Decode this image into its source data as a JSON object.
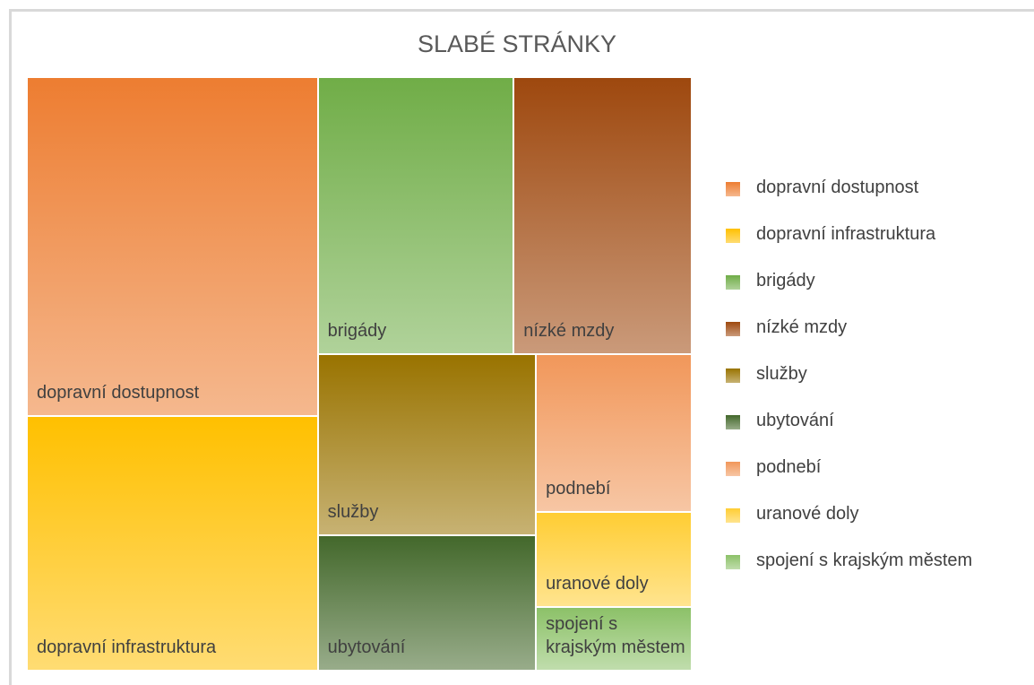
{
  "chart_data": {
    "type": "treemap",
    "title": "SLABÉ STRÁNKY",
    "categories": [
      "dopravní dostupnost",
      "dopravní infrastruktura",
      "brigády",
      "nízké mzdy",
      "služby",
      "ubytování",
      "podnebí",
      "uranové doly",
      "spojení s krajským městem"
    ],
    "values": [
      20,
      15,
      11,
      10,
      8,
      6,
      5,
      3,
      2
    ],
    "colors": [
      "#ED7D31",
      "#FFC000",
      "#70AD47",
      "#9E480E",
      "#997300",
      "#43682B",
      "#F1975A",
      "#FFCD33",
      "#8CC168"
    ],
    "legend": "right"
  }
}
